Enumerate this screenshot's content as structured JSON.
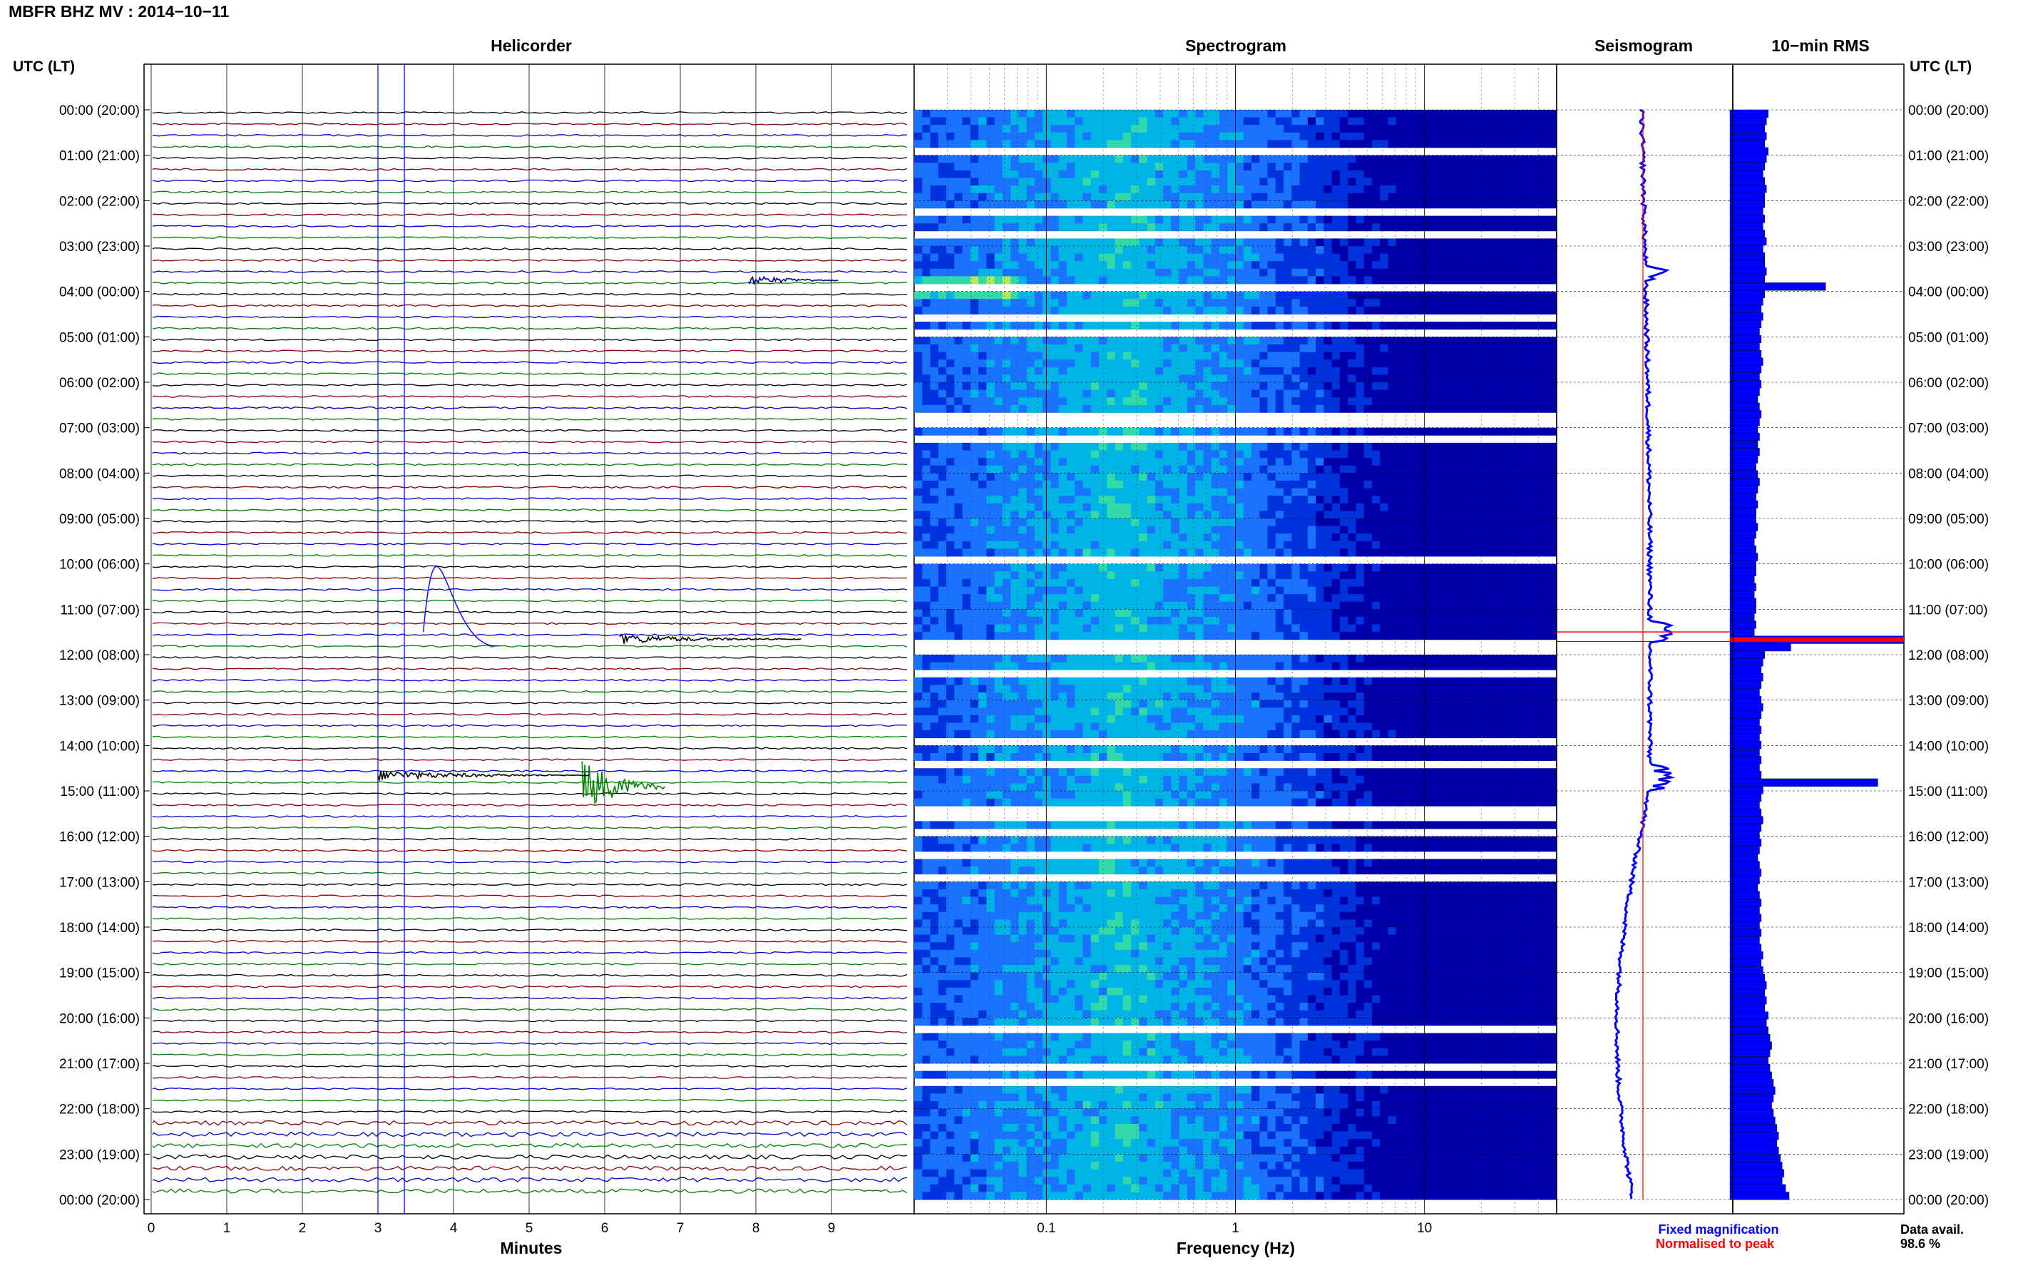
{
  "chart_data": {
    "type": "heatmap",
    "station_title": "MBFR BHZ MV : 2014−10−11",
    "panels": {
      "helicorder": "Helicorder",
      "spectrogram": "Spectrogram",
      "seismogram": "Seismogram",
      "rms": "10−min RMS"
    },
    "time_axis_label": "UTC (LT)",
    "time_ticks": [
      "00:00 (20:00)",
      "01:00 (21:00)",
      "02:00 (22:00)",
      "03:00 (23:00)",
      "04:00 (00:00)",
      "05:00 (01:00)",
      "06:00 (02:00)",
      "07:00 (03:00)",
      "08:00 (04:00)",
      "09:00 (05:00)",
      "10:00 (06:00)",
      "11:00 (07:00)",
      "12:00 (08:00)",
      "13:00 (09:00)",
      "14:00 (10:00)",
      "15:00 (11:00)",
      "16:00 (12:00)",
      "17:00 (13:00)",
      "18:00 (14:00)",
      "19:00 (15:00)",
      "20:00 (16:00)",
      "21:00 (17:00)",
      "22:00 (18:00)",
      "23:00 (19:00)",
      "00:00 (20:00)"
    ],
    "helicorder_xlabel": "Minutes",
    "helicorder_xticks": [
      "0",
      "1",
      "2",
      "3",
      "4",
      "5",
      "6",
      "7",
      "8",
      "9"
    ],
    "helicorder_xlim": [
      0,
      10
    ],
    "helicorder_trace_colors": [
      "#000000",
      "#8b0000",
      "#0000cd",
      "#008000"
    ],
    "helicorder_events": [
      {
        "hour": 3.6,
        "minute_start": 7.9,
        "minute_end": 9.1,
        "amplitude": 0.6,
        "trace_color": "#00008b"
      },
      {
        "hour": 11.5,
        "minute_start": 6.2,
        "minute_end": 8.6,
        "amplitude": 0.5,
        "trace_color": "#000000"
      },
      {
        "hour": 14.75,
        "minute_start": 5.7,
        "minute_end": 6.8,
        "amplitude": 2.8,
        "trace_color": "#008000"
      },
      {
        "hour": 14.5,
        "minute_start": 3.0,
        "minute_end": 5.8,
        "amplitude": 0.5,
        "trace_color": "#000000"
      }
    ],
    "spectrogram_xlabel": "Frequency (Hz)",
    "spectrogram_xticks": [
      "0.1",
      "1",
      "10"
    ],
    "spectrogram_xscale": "log",
    "spectrogram_xlim": [
      0.02,
      50
    ],
    "spectrogram_colormap": [
      "#0000aa",
      "#0033dd",
      "#1a73ff",
      "#00b4e6",
      "#33d9a8",
      "#b4ea5a",
      "#f0e64a"
    ],
    "rms_values": [
      0.22,
      0.21,
      0.2,
      0.21,
      0.2,
      0.22,
      0.21,
      0.2,
      0.19,
      0.2,
      0.21,
      0.2,
      0.2,
      0.19,
      0.2,
      0.19,
      0.2,
      0.21,
      0.19,
      0.2,
      0.2,
      0.21,
      0.2,
      0.55,
      0.2,
      0.19,
      0.18,
      0.19,
      0.18,
      0.17,
      0.18,
      0.17,
      0.18,
      0.19,
      0.18,
      0.17,
      0.18,
      0.17,
      0.16,
      0.17,
      0.18,
      0.17,
      0.16,
      0.17,
      0.16,
      0.17,
      0.16,
      0.15,
      0.16,
      0.17,
      0.16,
      0.15,
      0.16,
      0.15,
      0.15,
      0.16,
      0.15,
      0.14,
      0.15,
      0.16,
      0.15,
      0.15,
      0.14,
      0.15,
      0.14,
      0.15,
      0.15,
      0.14,
      0.15,
      0.14,
      1.0,
      0.35,
      0.2,
      0.19,
      0.18,
      0.19,
      0.18,
      0.17,
      0.18,
      0.19,
      0.18,
      0.17,
      0.18,
      0.17,
      0.18,
      0.17,
      0.18,
      0.17,
      0.18,
      0.85,
      0.19,
      0.18,
      0.17,
      0.18,
      0.19,
      0.18,
      0.17,
      0.18,
      0.17,
      0.16,
      0.17,
      0.18,
      0.17,
      0.16,
      0.17,
      0.18,
      0.17,
      0.18,
      0.17,
      0.18,
      0.17,
      0.18,
      0.19,
      0.18,
      0.19,
      0.2,
      0.21,
      0.2,
      0.21,
      0.2,
      0.22,
      0.21,
      0.22,
      0.23,
      0.24,
      0.23,
      0.22,
      0.23,
      0.24,
      0.25,
      0.26,
      0.25,
      0.24,
      0.25,
      0.26,
      0.27,
      0.28,
      0.27,
      0.28,
      0.29,
      0.3,
      0.31,
      0.3,
      0.32,
      0.34
    ],
    "rms_peak_bin": 70,
    "legend": {
      "fixed": "Fixed magnification",
      "normalised": "Normalised to peak"
    },
    "data_availability_label": "Data avail.",
    "data_availability_value": "98.6 %"
  },
  "colors": {
    "blue": "#0000ff",
    "red": "#ff0000",
    "frame": "#000000"
  }
}
